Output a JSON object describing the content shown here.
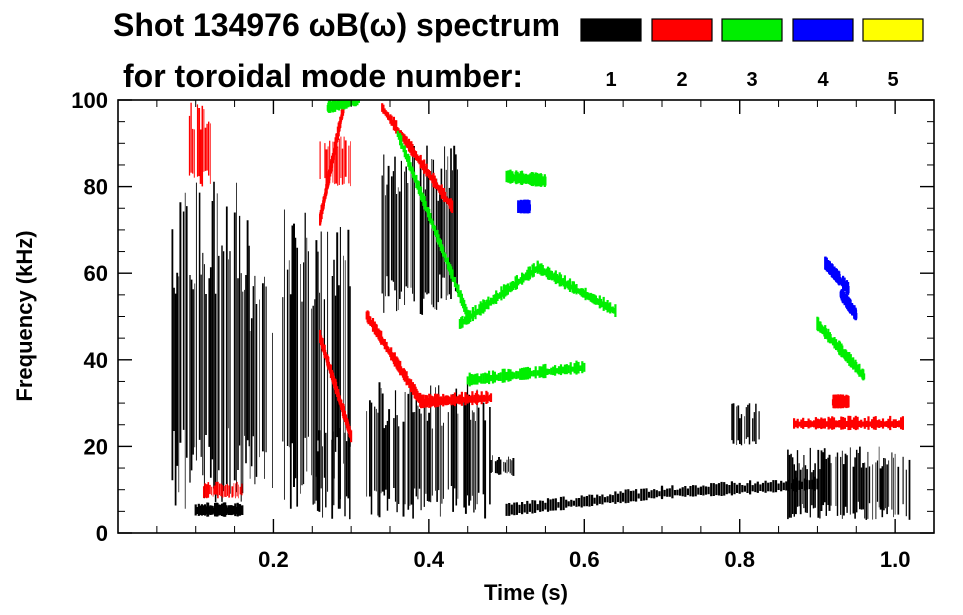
{
  "chart_data": {
    "type": "heatmap",
    "title": "Shot 134976 ωB(ω) spectrum",
    "subtitle": "for toroidal mode number:",
    "xlabel": "Time (s)",
    "ylabel": "Frequency (kHz)",
    "xlim": [
      0.0,
      1.05
    ],
    "ylim": [
      0,
      100
    ],
    "x_ticks": [
      "0.2",
      "0.4",
      "0.6",
      "0.8",
      "1.0"
    ],
    "x_tick_values": [
      0.2,
      0.4,
      0.6,
      0.8,
      1.0
    ],
    "y_ticks": [
      "0",
      "20",
      "40",
      "60",
      "80",
      "100"
    ],
    "y_tick_values": [
      0,
      20,
      40,
      60,
      80,
      100
    ],
    "legend_placement": "top-right",
    "legend": [
      {
        "label": "1",
        "color": "#000000"
      },
      {
        "label": "2",
        "color": "#ff0000"
      },
      {
        "label": "3",
        "color": "#00ee00"
      },
      {
        "label": "4",
        "color": "#0000ff"
      },
      {
        "label": "5",
        "color": "#ffff00"
      }
    ],
    "series": [
      {
        "name": "1",
        "color": "#000000",
        "regions": [
          {
            "t": [
              0.07,
              0.17
            ],
            "f": [
              5,
              82
            ]
          },
          {
            "t": [
              0.17,
              0.2
            ],
            "f": [
              10,
              60
            ]
          },
          {
            "t": [
              0.21,
              0.3
            ],
            "f": [
              5,
              75
            ]
          },
          {
            "t": [
              0.255,
              0.3
            ],
            "f": [
              3,
              25
            ]
          },
          {
            "t": [
              0.32,
              0.48
            ],
            "f": [
              3,
              35
            ]
          },
          {
            "t": [
              0.34,
              0.44
            ],
            "f": [
              50,
              90
            ]
          },
          {
            "t": [
              0.48,
              0.51
            ],
            "f": [
              13,
              18
            ]
          },
          {
            "t": [
              0.79,
              0.83
            ],
            "f": [
              20,
              30
            ]
          },
          {
            "t": [
              0.86,
              1.02
            ],
            "f": [
              3,
              20
            ]
          }
        ],
        "ridges": [
          {
            "t": [
              0.1,
              0.16
            ],
            "f": [
              5,
              5
            ]
          },
          {
            "t": [
              0.5,
              0.7
            ],
            "f": [
              5,
              9
            ]
          },
          {
            "t": [
              0.7,
              0.9
            ],
            "f": [
              9,
              11
            ]
          }
        ]
      },
      {
        "name": "2",
        "color": "#ff0000",
        "ridges": [
          {
            "t": [
              0.32,
              0.39
            ],
            "f": [
              50,
              30
            ]
          },
          {
            "t": [
              0.39,
              0.48
            ],
            "f": [
              30,
              31
            ]
          },
          {
            "t": [
              0.34,
              0.43
            ],
            "f": [
              98,
              75
            ]
          },
          {
            "t": [
              0.26,
              0.29
            ],
            "f": [
              72,
              98
            ]
          },
          {
            "t": [
              0.26,
              0.3
            ],
            "f": [
              45,
              22
            ]
          },
          {
            "t": [
              0.87,
              1.01
            ],
            "f": [
              25,
              25
            ]
          },
          {
            "t": [
              0.92,
              0.94
            ],
            "f": [
              30,
              30
            ]
          }
        ],
        "regions": [
          {
            "t": [
              0.26,
              0.3
            ],
            "f": [
              80,
              92
            ]
          },
          {
            "t": [
              0.09,
              0.12
            ],
            "f": [
              80,
              100
            ]
          },
          {
            "t": [
              0.11,
              0.16
            ],
            "f": [
              8,
              12
            ]
          }
        ]
      },
      {
        "name": "3",
        "color": "#00ee00",
        "ridges": [
          {
            "t": [
              0.44,
              0.54
            ],
            "f": [
              48,
              61
            ]
          },
          {
            "t": [
              0.54,
              0.64
            ],
            "f": [
              61,
              51
            ]
          },
          {
            "t": [
              0.5,
              0.55
            ],
            "f": [
              82,
              81
            ]
          },
          {
            "t": [
              0.36,
              0.45
            ],
            "f": [
              92,
              50
            ]
          },
          {
            "t": [
              0.27,
              0.31
            ],
            "f": [
              98,
              100
            ]
          },
          {
            "t": [
              0.9,
              0.96
            ],
            "f": [
              48,
              36
            ]
          },
          {
            "t": [
              0.45,
              0.6
            ],
            "f": [
              35,
              38
            ]
          }
        ]
      },
      {
        "name": "4",
        "color": "#0000ff",
        "ridges": [
          {
            "t": [
              0.91,
              0.94
            ],
            "f": [
              62,
              56
            ]
          },
          {
            "t": [
              0.93,
              0.95
            ],
            "f": [
              55,
              50
            ]
          },
          {
            "t": [
              0.515,
              0.53
            ],
            "f": [
              75,
              75
            ]
          }
        ]
      },
      {
        "name": "5",
        "color": "#ffff00",
        "ridges": []
      }
    ]
  }
}
